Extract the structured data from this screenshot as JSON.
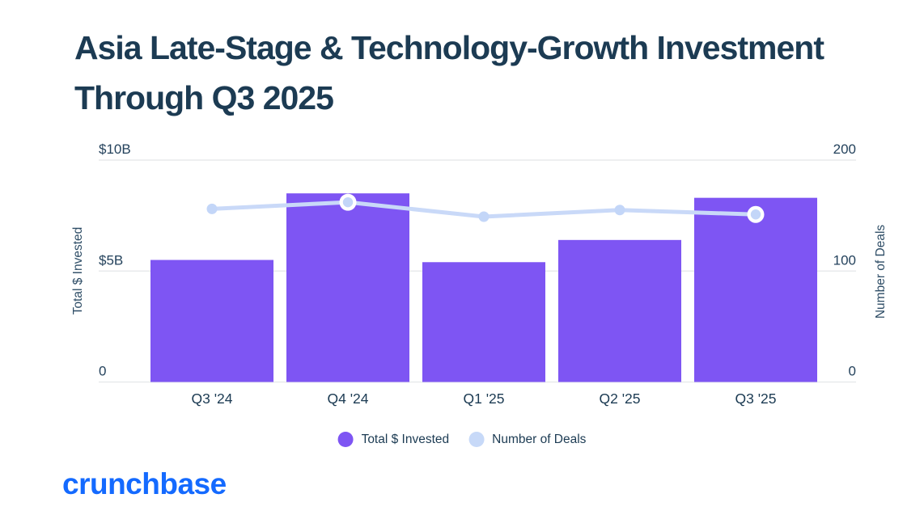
{
  "page": {
    "title": "Asia Late-Stage & Technology-Growth Investment Through Q3 2025",
    "logo_text": "crunchbase",
    "colors": {
      "background": "#ffffff",
      "title_text": "#1c3b53",
      "axis_text": "#2e4d66",
      "tick_text": "#24425c",
      "gridline": "#e8eaec",
      "bar": "#7e55f3",
      "line": "#c9d9f8",
      "marker": "#c3d6f8",
      "marker_ring": "#ffffff",
      "logo_blue": "#146aff"
    }
  },
  "chart_data": {
    "type": "bar",
    "subtype": "combo bar + line, dual axis",
    "title": "Asia Late-Stage & Technology-Growth Investment Through Q3 2025",
    "categories": [
      "Q3 '24",
      "Q4 '24",
      "Q1 '25",
      "Q2 '25",
      "Q3 '25"
    ],
    "series": [
      {
        "name": "Total $ Invested",
        "render": "bar",
        "axis": "left",
        "unit": "USD billions",
        "values": [
          5.5,
          8.5,
          5.4,
          6.4,
          8.3
        ],
        "color": "#7e55f3"
      },
      {
        "name": "Number of Deals",
        "render": "line",
        "axis": "right",
        "unit": "deals",
        "values": [
          156,
          162,
          149,
          155,
          151
        ],
        "color": "#c9d9f8",
        "marker_color": "#c3d6f8",
        "highlight_indices": [
          1,
          4
        ]
      }
    ],
    "left_axis": {
      "label": "Total $ Invested",
      "max": 10,
      "ticks": [
        {
          "value": 10,
          "label": "$10B"
        },
        {
          "value": 5,
          "label": "$5B"
        },
        {
          "value": 0,
          "label": "0"
        }
      ]
    },
    "right_axis": {
      "label": "Number of Deals",
      "max": 200,
      "ticks": [
        {
          "value": 200,
          "label": "200"
        },
        {
          "value": 100,
          "label": "100"
        },
        {
          "value": 0,
          "label": "0"
        }
      ]
    },
    "legend": [
      {
        "label": "Total $ Invested",
        "color": "#7e55f3"
      },
      {
        "label": "Number of Deals",
        "color": "#c7d9f8"
      }
    ],
    "grid": "horizontal gridlines only",
    "legend_position": "bottom center"
  }
}
